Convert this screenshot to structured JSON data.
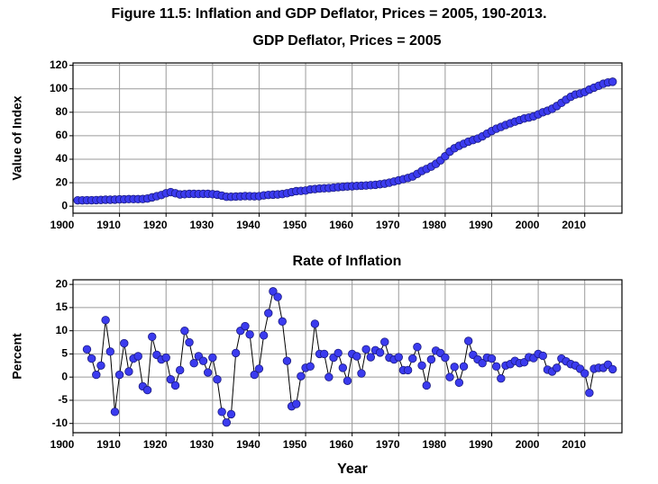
{
  "title": "Figure 11.5: Inflation and GDP Deflator, Prices = 2005, 190-2013.",
  "chart_data": [
    {
      "type": "line",
      "title": "GDP Deflator, Prices = 2005",
      "ylabel": "Value of Index",
      "color": "#3b3bef",
      "line_color": "#000000",
      "grid": true,
      "xlim": [
        1900,
        2018
      ],
      "xticks": [
        1900,
        1910,
        1920,
        1930,
        1940,
        1950,
        1960,
        1970,
        1980,
        1990,
        2000,
        2010
      ],
      "ylim": [
        -6,
        122
      ],
      "yticks": [
        0,
        20,
        40,
        60,
        80,
        100,
        120
      ],
      "x": [
        1901,
        1902,
        1903,
        1904,
        1905,
        1906,
        1907,
        1908,
        1909,
        1910,
        1911,
        1912,
        1913,
        1914,
        1915,
        1916,
        1917,
        1918,
        1919,
        1920,
        1921,
        1922,
        1923,
        1924,
        1925,
        1926,
        1927,
        1928,
        1929,
        1930,
        1931,
        1932,
        1933,
        1934,
        1935,
        1936,
        1937,
        1938,
        1939,
        1940,
        1941,
        1942,
        1943,
        1944,
        1945,
        1946,
        1947,
        1948,
        1949,
        1950,
        1951,
        1952,
        1953,
        1954,
        1955,
        1956,
        1957,
        1958,
        1959,
        1960,
        1961,
        1962,
        1963,
        1964,
        1965,
        1966,
        1967,
        1968,
        1969,
        1970,
        1971,
        1972,
        1973,
        1974,
        1975,
        1976,
        1977,
        1978,
        1979,
        1980,
        1981,
        1982,
        1983,
        1984,
        1985,
        1986,
        1987,
        1988,
        1989,
        1990,
        1991,
        1992,
        1993,
        1994,
        1995,
        1996,
        1997,
        1998,
        1999,
        2000,
        2001,
        2002,
        2003,
        2004,
        2005,
        2006,
        2007,
        2008,
        2009,
        2010,
        2011,
        2012,
        2013,
        2014,
        2015,
        2016
      ],
      "values": [
        5,
        5,
        5.1,
        5.1,
        5.2,
        5.3,
        5.5,
        5.5,
        5.6,
        5.8,
        5.8,
        6,
        6,
        6,
        6.1,
        6.5,
        7.5,
        8.5,
        9.5,
        11,
        12,
        11,
        10,
        10.2,
        10.5,
        10.5,
        10.4,
        10.5,
        10.5,
        10.2,
        9.8,
        9,
        8,
        8,
        8.2,
        8.3,
        8.6,
        8.5,
        8.4,
        8.5,
        9.2,
        9.6,
        9.8,
        10,
        10.3,
        11,
        12,
        12.8,
        13,
        13.3,
        14.3,
        14.6,
        15,
        15.2,
        15.4,
        15.8,
        16.2,
        16.5,
        16.8,
        17,
        17.2,
        17.4,
        17.6,
        17.9,
        18.2,
        18.7,
        19.2,
        20,
        21,
        22,
        23,
        24,
        25.3,
        27.5,
        30,
        31.7,
        33.7,
        36,
        39,
        42.5,
        46.5,
        49.3,
        51.4,
        53.2,
        55,
        56.3,
        57.6,
        59.5,
        61.8,
        64,
        66,
        67.5,
        69.2,
        70.6,
        72,
        73.4,
        74.7,
        75.5,
        76.5,
        78.2,
        80,
        81.3,
        83,
        85.3,
        88,
        90.7,
        93.2,
        95.1,
        96,
        97.2,
        99.3,
        101,
        102.6,
        104.3,
        105.4,
        106
      ]
    },
    {
      "type": "line",
      "title": "Rate of Inflation",
      "ylabel": "Percent",
      "xlabel": "Year",
      "color": "#3b3bef",
      "line_color": "#000000",
      "grid": true,
      "xlim": [
        1900,
        2018
      ],
      "xticks": [
        1900,
        1910,
        1920,
        1930,
        1940,
        1950,
        1960,
        1970,
        1980,
        1990,
        2000,
        2010
      ],
      "ylim": [
        -12,
        21
      ],
      "yticks": [
        -10,
        -5,
        0,
        5,
        10,
        15,
        20
      ],
      "x": [
        1903,
        1904,
        1905,
        1906,
        1907,
        1908,
        1909,
        1910,
        1911,
        1912,
        1913,
        1914,
        1915,
        1916,
        1917,
        1918,
        1919,
        1920,
        1921,
        1922,
        1923,
        1924,
        1925,
        1926,
        1927,
        1928,
        1929,
        1930,
        1931,
        1932,
        1933,
        1934,
        1935,
        1936,
        1937,
        1938,
        1939,
        1940,
        1941,
        1942,
        1943,
        1944,
        1945,
        1946,
        1947,
        1948,
        1949,
        1950,
        1951,
        1952,
        1953,
        1954,
        1955,
        1956,
        1957,
        1958,
        1959,
        1960,
        1961,
        1962,
        1963,
        1964,
        1965,
        1966,
        1967,
        1968,
        1969,
        1970,
        1971,
        1972,
        1973,
        1974,
        1975,
        1976,
        1977,
        1978,
        1979,
        1980,
        1981,
        1982,
        1983,
        1984,
        1985,
        1986,
        1987,
        1988,
        1989,
        1990,
        1991,
        1992,
        1993,
        1994,
        1995,
        1996,
        1997,
        1998,
        1999,
        2000,
        2001,
        2002,
        2003,
        2004,
        2005,
        2006,
        2007,
        2008,
        2009,
        2010,
        2011,
        2012,
        2013,
        2014,
        2015,
        2016
      ],
      "values": [
        6,
        4,
        0.5,
        2.5,
        12.3,
        5.5,
        -7.5,
        0.5,
        7.3,
        1.2,
        4,
        4.5,
        -2,
        -2.8,
        8.7,
        4.8,
        3.8,
        4.2,
        -0.5,
        -1.8,
        1.5,
        10,
        7.5,
        3,
        4.5,
        3.5,
        1,
        4.2,
        -0.5,
        -7.5,
        -9.8,
        -8,
        5.2,
        10,
        11,
        9.2,
        0.5,
        1.8,
        9,
        13.8,
        18.5,
        17.3,
        12,
        3.5,
        -6.3,
        -5.8,
        0.2,
        2,
        2.3,
        11.5,
        5,
        5,
        0,
        4.2,
        5.2,
        2,
        -0.8,
        5,
        4.5,
        0.8,
        6,
        4.3,
        5.8,
        5.3,
        7.6,
        4.2,
        3.8,
        4.3,
        1.5,
        1.5,
        4,
        6.5,
        2.5,
        -1.8,
        3.8,
        5.7,
        5.2,
        4.2,
        0,
        2.2,
        -1.2,
        2.3,
        7.8,
        4.8,
        3.8,
        3,
        4.2,
        4,
        2.3,
        -0.3,
        2.5,
        2.8,
        3.5,
        3,
        3.2,
        4.3,
        4.1,
        5,
        4.6,
        1.6,
        1.2,
        2,
        4,
        3.4,
        2.8,
        2.5,
        1.8,
        0.8,
        -3.4,
        1.8,
        2,
        2,
        2.7,
        1.7
      ]
    }
  ]
}
